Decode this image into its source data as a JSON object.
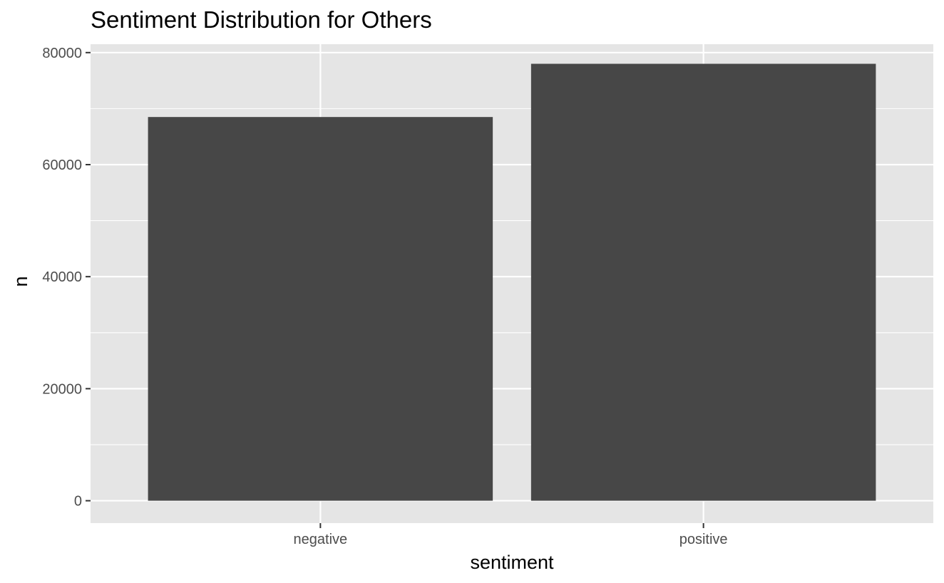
{
  "chart_data": {
    "type": "bar",
    "title": "Sentiment Distribution for Others",
    "xlabel": "sentiment",
    "ylabel": "n",
    "categories": [
      "negative",
      "positive"
    ],
    "values": [
      68500,
      78000
    ],
    "ylim": [
      -4000,
      81500
    ],
    "yticks": [
      0,
      20000,
      40000,
      60000,
      80000
    ],
    "ytick_labels": [
      "0",
      "20000",
      "40000",
      "60000",
      "80000"
    ],
    "grid": true,
    "legend": "none",
    "colors": {
      "panel_background": "#e5e5e5",
      "gridline": "#ffffff",
      "bar_fill": "#474747",
      "tick_label": "#4d4d4d",
      "tick_mark": "#333333",
      "text": "#000000"
    }
  }
}
